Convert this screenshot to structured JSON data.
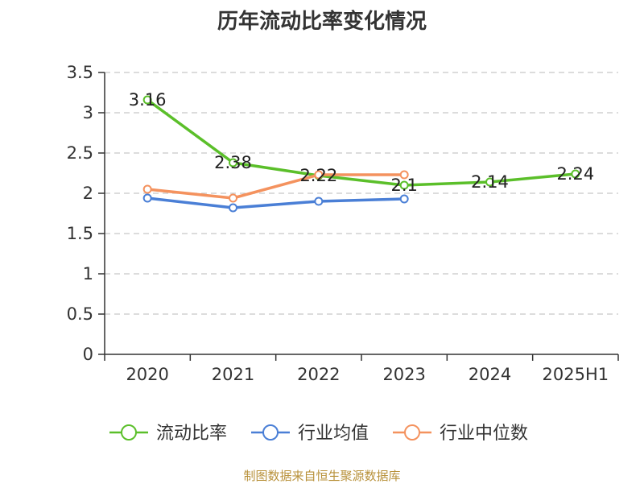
{
  "chart_data": {
    "type": "line",
    "title": "历年流动比率变化情况",
    "categories": [
      "2020",
      "2021",
      "2022",
      "2023",
      "2024",
      "2025H1"
    ],
    "ylim": [
      0,
      3.5
    ],
    "yticks": [
      "0",
      "0.5",
      "1",
      "1.5",
      "2",
      "2.5",
      "3",
      "3.5"
    ],
    "grid": true,
    "legend_position": "bottom",
    "series": [
      {
        "name": "流动比率",
        "color": "#5bbf2a",
        "values": [
          3.16,
          2.38,
          2.22,
          2.1,
          2.14,
          2.24
        ],
        "labels": [
          "3.16",
          "2.38",
          "2.22",
          "2.1",
          "2.14",
          "2.24"
        ]
      },
      {
        "name": "行业均值",
        "color": "#4a7fd6",
        "values": [
          1.94,
          1.82,
          1.9,
          1.93,
          null,
          null
        ]
      },
      {
        "name": "行业中位数",
        "color": "#f4925e",
        "values": [
          2.05,
          1.94,
          2.23,
          2.23,
          null,
          null
        ]
      }
    ]
  },
  "source": "制图数据来自恒生聚源数据库"
}
